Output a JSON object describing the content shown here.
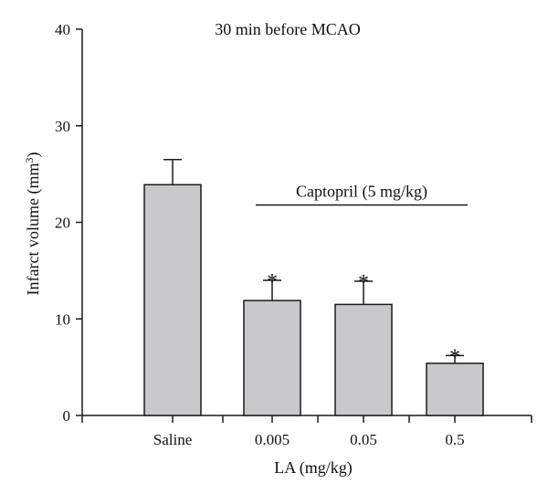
{
  "chart_data": {
    "type": "bar",
    "title": "30 min before MCAO",
    "xlabel": "LA (mg/kg)",
    "ylabel_main": "Infarct volume (mm",
    "ylabel_sup": "3",
    "ylabel_end": ")",
    "categories": [
      "Saline",
      "0.005",
      "0.05",
      "0.5"
    ],
    "values": [
      23.9,
      11.9,
      11.5,
      5.4
    ],
    "errors": [
      2.6,
      2.1,
      2.4,
      0.8
    ],
    "significance": [
      "",
      "*",
      "*",
      "*"
    ],
    "ylim": [
      0,
      40
    ],
    "yticks": [
      0,
      10,
      20,
      30,
      40
    ],
    "bar_color": "#c9c9cb",
    "annotation": "Captopril (5 mg/kg)",
    "annotation_span": [
      "0.005",
      "0.5"
    ],
    "grid": false
  }
}
